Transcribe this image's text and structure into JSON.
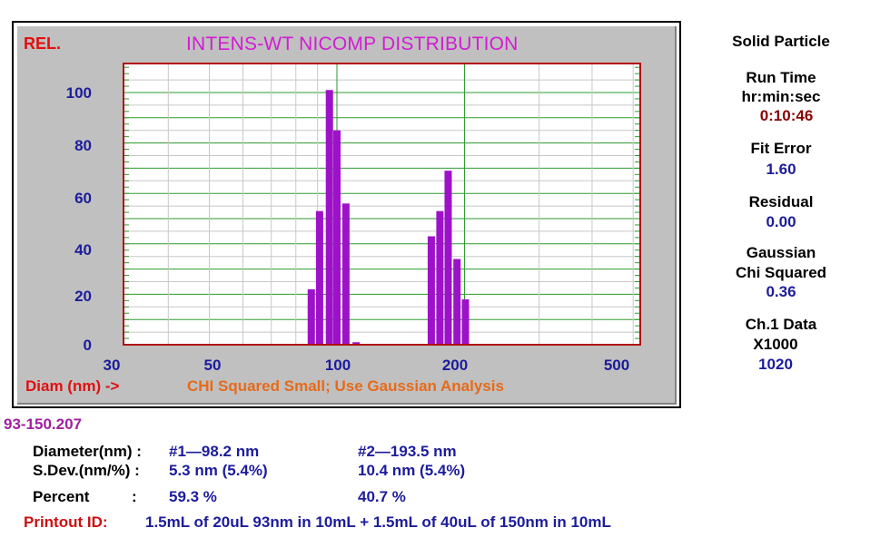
{
  "chart_data": {
    "type": "bar",
    "title": "INTENS-WT NICOMP DISTRIBUTION",
    "ylabel": "REL.",
    "xlabel": "Diam (nm) ->",
    "annotation": "CHI Squared Small; Use Gaussian Analysis",
    "x_scale": "log",
    "xlim": [
      30,
      600
    ],
    "ylim": [
      0,
      110
    ],
    "yticks": [
      "0",
      "20",
      "40",
      "60",
      "80",
      "100"
    ],
    "xticks": [
      "30",
      "50",
      "100",
      "200",
      "500"
    ],
    "grid": true,
    "bars": [
      {
        "x": 87,
        "value": 22
      },
      {
        "x": 91,
        "value": 53
      },
      {
        "x": 96,
        "value": 101
      },
      {
        "x": 100,
        "value": 85
      },
      {
        "x": 105,
        "value": 56
      },
      {
        "x": 111,
        "value": 1
      },
      {
        "x": 167,
        "value": 43
      },
      {
        "x": 175,
        "value": 53
      },
      {
        "x": 183,
        "value": 69
      },
      {
        "x": 192,
        "value": 34
      },
      {
        "x": 201,
        "value": 18
      }
    ]
  },
  "sidebar": {
    "mode": "Solid Particle",
    "run_time_label1": "Run Time",
    "run_time_label2": "hr:min:sec",
    "run_time_value": "0:10:46",
    "fit_error_label": "Fit Error",
    "fit_error_value": "1.60",
    "residual_label": "Residual",
    "residual_value": "0.00",
    "gaussian_label1": "Gaussian",
    "gaussian_label2": "Chi Squared",
    "gaussian_value": "0.36",
    "ch1_label1": "Ch.1 Data",
    "ch1_label2": "X1000",
    "ch1_value": "1020"
  },
  "results": {
    "sample_id": "93-150.207",
    "diameter_label": "Diameter(nm) :",
    "peak1_diameter": "#1—98.2 nm",
    "peak2_diameter": "#2—193.5 nm",
    "sdev_label": "S.Dev.(nm/%) :",
    "peak1_sdev": "5.3 nm (5.4%)",
    "peak2_sdev": "10.4 nm (5.4%)",
    "percent_label": "Percent",
    "percent_colon": ":",
    "peak1_percent": "59.3 %",
    "peak2_percent": "40.7 %",
    "printout_label": "Printout ID:",
    "printout_value": "1.5mL of 20uL 93nm in 10mL + 1.5mL of 40uL of 150nm in 10mL"
  },
  "colors": {
    "bar": "#9d12c8",
    "title": "#d41ad4",
    "rel_label": "#e01010",
    "annotation": "#e86a1a",
    "axis_text": "#1c1c9c",
    "grid_green": "#2e9a2e",
    "plot_border": "#b01010"
  }
}
